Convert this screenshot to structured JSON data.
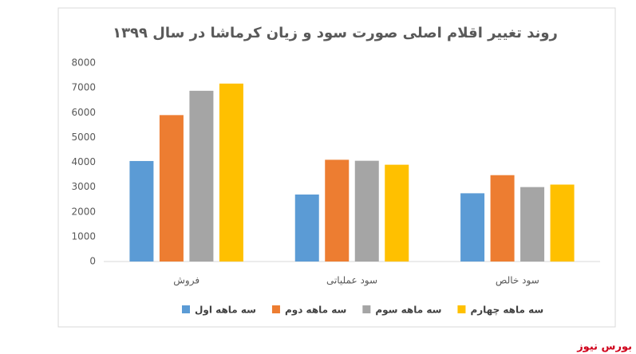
{
  "chart_data": {
    "type": "bar",
    "title": "روند تغییر اقلام اصلی صورت سود و زیان کرماشا در سال ۱۳۹۹",
    "categories": [
      "فروش",
      "سود عملیاتی",
      "سود خالص"
    ],
    "series": [
      {
        "name": "سه ماهه اول",
        "color": "#5b9bd5",
        "values": [
          4050,
          2700,
          2750
        ]
      },
      {
        "name": "سه ماهه دوم",
        "color": "#ed7d31",
        "values": [
          5900,
          4100,
          3480
        ]
      },
      {
        "name": "سه ماهه سوم",
        "color": "#a5a5a5",
        "values": [
          6880,
          4060,
          3000
        ]
      },
      {
        "name": "سه ماهه چهارم",
        "color": "#ffc000",
        "values": [
          7170,
          3900,
          3100
        ]
      }
    ],
    "ylim": [
      0,
      8000
    ],
    "yticks": [
      0,
      1000,
      2000,
      3000,
      4000,
      5000,
      6000,
      7000,
      8000
    ],
    "grid": false,
    "legend": "bottom",
    "source": "بورس نیوز"
  }
}
